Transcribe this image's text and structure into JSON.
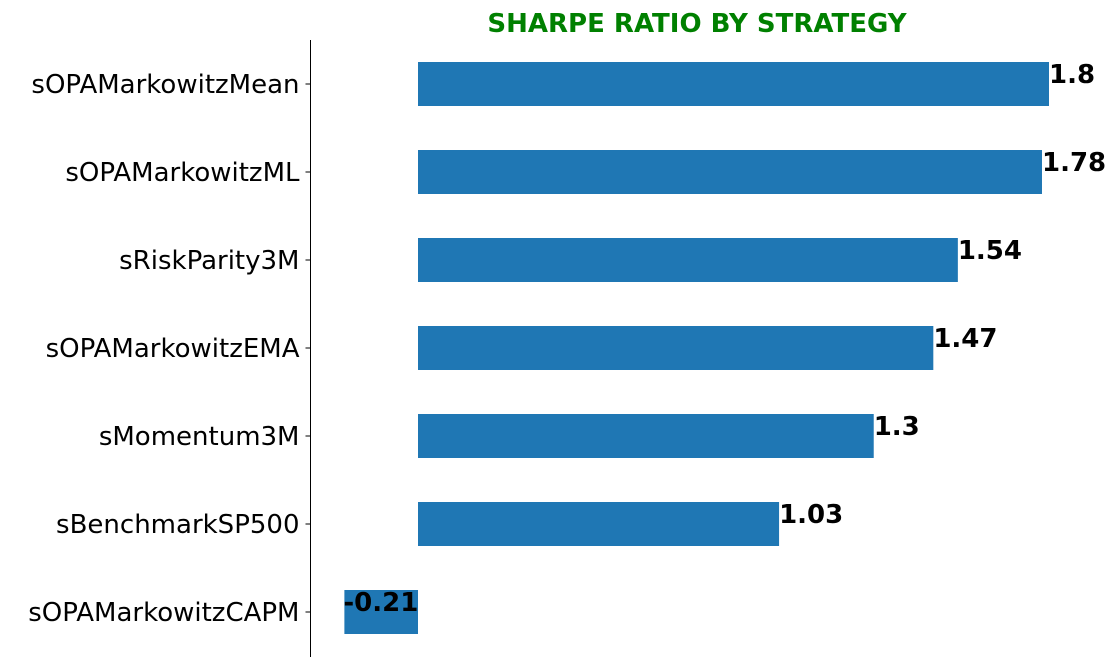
{
  "chart_data": {
    "type": "bar",
    "orientation": "horizontal",
    "title": "SHARPE RATIO BY STRATEGY",
    "xlabel": "",
    "ylabel": "",
    "categories": [
      "sOPAMarkowitzMean",
      "sOPAMarkowitzML",
      "sRiskParity3M",
      "sOPAMarkowitzEMA",
      "sMomentum3M",
      "sBenchmarkSP500",
      "sOPAMarkowitzCAPM"
    ],
    "values": [
      1.8,
      1.78,
      1.54,
      1.47,
      1.3,
      1.03,
      -0.21
    ],
    "value_labels": [
      "1.8",
      "1.78",
      "1.54",
      "1.47",
      "1.3",
      "1.03",
      "-0.21"
    ],
    "xlim": [
      -0.21,
      1.8
    ],
    "grid": false,
    "x_axis_visible": false,
    "colors": {
      "bar": "#1f77b4",
      "title": "#008000",
      "text": "#000000",
      "axis": "#000000"
    }
  }
}
